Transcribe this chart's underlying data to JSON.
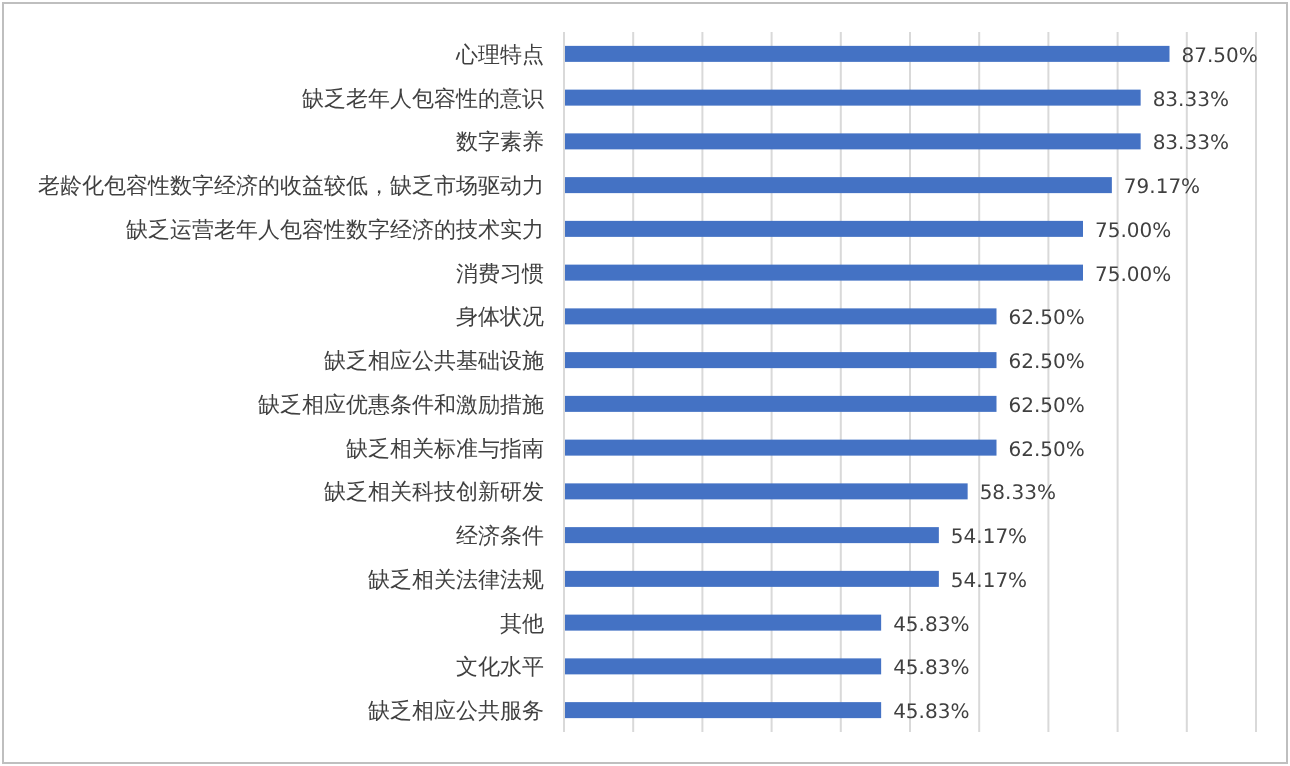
{
  "chart_data": {
    "type": "bar",
    "orientation": "horizontal",
    "categories": [
      "心理特点",
      "缺乏老年人包容性的意识",
      "数字素养",
      "老龄化包容性数字经济的收益较低，缺乏市场驱动力",
      "缺乏运营老年人包容性数字经济的技术实力",
      "消费习惯",
      "身体状况",
      "缺乏相应公共基础设施",
      "缺乏相应优惠条件和激励措施",
      "缺乏相关标准与指南",
      "缺乏相关科技创新研发",
      "经济条件",
      "缺乏相关法律法规",
      "其他",
      "文化水平",
      "缺乏相应公共服务"
    ],
    "values": [
      87.5,
      83.33,
      83.33,
      79.17,
      75,
      75,
      62.5,
      62.5,
      62.5,
      62.5,
      58.33,
      54.17,
      54.17,
      45.83,
      45.83,
      45.83
    ],
    "value_labels": [
      "87.50%",
      "83.33%",
      "83.33%",
      "79.17%",
      "75.00%",
      "75.00%",
      "62.50%",
      "62.50%",
      "62.50%",
      "62.50%",
      "58.33%",
      "54.17%",
      "54.17%",
      "45.83%",
      "45.83%",
      "45.83%"
    ],
    "color": "#4472c4",
    "xlim": [
      0,
      100
    ],
    "xticks": [
      {
        "value": 0,
        "label": null
      },
      {
        "value": 10,
        "label": null
      },
      {
        "value": 20,
        "label": null
      },
      {
        "value": 30,
        "label": null
      },
      {
        "value": 40,
        "label": null
      },
      {
        "value": 50,
        "label": null
      },
      {
        "value": 60,
        "label": null
      },
      {
        "value": 70,
        "label": null
      },
      {
        "value": 80,
        "label": null
      },
      {
        "value": 90,
        "label": null
      },
      {
        "value": 100,
        "label": null
      }
    ],
    "grid": "x",
    "tick_labels": "y"
  }
}
